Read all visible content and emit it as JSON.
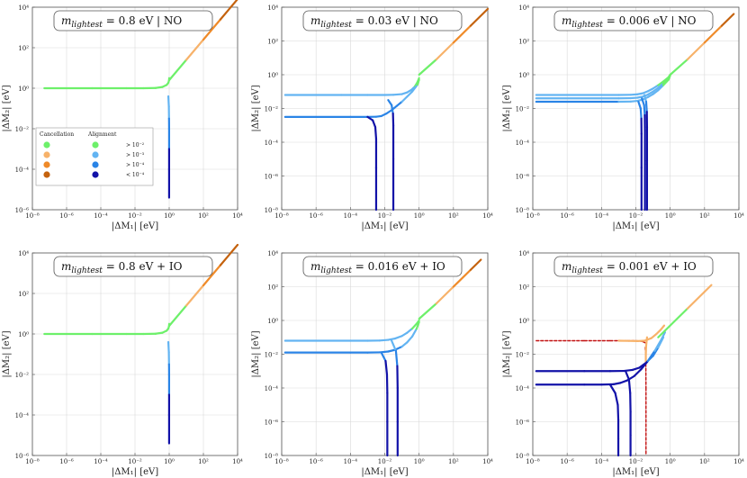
{
  "colors": {
    "green": "#6df06a",
    "peach": "#f7b26a",
    "orange": "#ef8a28",
    "dark_orange": "#c4620e",
    "light_blue": "#63b4f2",
    "mid_blue": "#2a84e6",
    "dark_blue": "#1212a8",
    "red": "#c21010"
  },
  "legend": {
    "title_cancellation": "Cancellation",
    "title_alignment": "Alignment",
    "entries": [
      "> 10⁻²",
      "> 10⁻³",
      "> 10⁻⁴",
      "< 10⁻⁴"
    ]
  },
  "chart_data": [
    {
      "type": "line",
      "title": "m_lightest = 0.8 eV | NO",
      "title_main": "m",
      "title_sub": "lightest",
      "title_rest": " = 0.8 eV  |  NO",
      "xlabel": "|ΔM₁| [eV]",
      "ylabel": "|ΔM₂| [eV]",
      "xlim": [
        -8,
        4
      ],
      "ylim": [
        -6,
        4
      ],
      "xticks": [
        -8,
        -6,
        -4,
        -2,
        0,
        2,
        4
      ],
      "yticks": [
        -6,
        -4,
        -2,
        0,
        2,
        4
      ],
      "series": [
        {
          "name": "plateau",
          "colored": true,
          "x": [
            -7.3,
            -4.5,
            -2.5,
            -1.5,
            -0.8,
            -0.4,
            -0.15,
            -0.05,
            -0.01,
            0.0
          ],
          "y": [
            0,
            0,
            0,
            0,
            0.01,
            0.06,
            0.16,
            0.27,
            0.38,
            0.5
          ]
        },
        {
          "name": "spike",
          "colored": true,
          "x": [
            -0.05,
            -0.02,
            -0.01,
            -0.005,
            -0.005,
            -0.005,
            -0.005
          ],
          "y": [
            -0.4,
            -0.9,
            -1.5,
            -2,
            -3,
            -4,
            -5.4
          ]
        },
        {
          "name": "upper",
          "colored": false,
          "x": [
            0,
            1,
            2,
            3,
            4
          ],
          "y": [
            0.4,
            1.4,
            2.4,
            3.4,
            4.4
          ]
        }
      ]
    },
    {
      "type": "line",
      "title": "m_lightest = 0.03 eV | NO",
      "title_main": "m",
      "title_sub": "lightest",
      "title_rest": " = 0.03 eV  |  NO",
      "xlabel": "|ΔM₁| [eV]",
      "ylabel": "|ΔM₂| [eV]",
      "xlim": [
        -8,
        4
      ],
      "ylim": [
        -8,
        4
      ],
      "xticks": [
        -8,
        -6,
        -4,
        -2,
        0,
        2,
        4
      ],
      "yticks": [
        -8,
        -6,
        -4,
        -2,
        0,
        2,
        4
      ],
      "series": [
        {
          "name": "plateau-1",
          "colored": true,
          "x": [
            -7.8,
            -4.5,
            -3,
            -2,
            -1.5,
            -1,
            -0.7,
            -0.45,
            -0.25,
            -0.1,
            0
          ],
          "y": [
            -1.2,
            -1.2,
            -1.2,
            -1.2,
            -1.19,
            -1.15,
            -1.05,
            -0.9,
            -0.7,
            -0.45,
            -0.2
          ]
        },
        {
          "name": "plateau-2",
          "colored": true,
          "x": [
            -7.8,
            -4,
            -3,
            -2.5,
            -2.2,
            -1.9,
            -1.6,
            -1.3,
            -1,
            -0.7,
            -0.4,
            -0.1,
            0
          ],
          "y": [
            -2.5,
            -2.5,
            -2.5,
            -2.49,
            -2.45,
            -2.3,
            -2.1,
            -1.85,
            -1.6,
            -1.3,
            -1,
            -0.6,
            -0.3
          ]
        },
        {
          "name": "spike-1",
          "colored": true,
          "x": [
            -3,
            -2.7,
            -2.55,
            -2.5,
            -2.5,
            -2.5
          ],
          "y": [
            -2.5,
            -2.7,
            -3.1,
            -3.8,
            -5.5,
            -8
          ]
        },
        {
          "name": "spike-2",
          "colored": true,
          "x": [
            -1.8,
            -1.6,
            -1.52,
            -1.5,
            -1.5,
            -1.5
          ],
          "y": [
            -1.5,
            -1.8,
            -2.3,
            -3,
            -5,
            -8
          ]
        },
        {
          "name": "upper",
          "colored": false,
          "x": [
            0,
            1,
            2,
            3,
            4
          ],
          "y": [
            0,
            0.9,
            1.9,
            2.9,
            3.9
          ]
        }
      ]
    },
    {
      "type": "line",
      "title": "m_lightest = 0.006 eV | NO",
      "title_main": "m",
      "title_sub": "lightest",
      "title_rest": " = 0.006 eV  |  NO",
      "xlabel": "|ΔM₁| [eV]",
      "ylabel": "|ΔM₂| [eV]",
      "xlim": [
        -8,
        4
      ],
      "ylim": [
        -8,
        4
      ],
      "xticks": [
        -8,
        -6,
        -4,
        -2,
        0,
        2,
        4
      ],
      "yticks": [
        -8,
        -6,
        -4,
        -2,
        0,
        2,
        4
      ],
      "series": [
        {
          "name": "plateau-1",
          "colored": true,
          "x": [
            -7.8,
            -4,
            -3,
            -2.3,
            -1.9,
            -1.6,
            -1.3,
            -1,
            -0.7,
            -0.4,
            -0.1,
            0
          ],
          "y": [
            -1.2,
            -1.2,
            -1.2,
            -1.19,
            -1.16,
            -1.1,
            -0.98,
            -0.82,
            -0.62,
            -0.4,
            -0.15,
            0
          ]
        },
        {
          "name": "plateau-2",
          "colored": true,
          "x": [
            -7.8,
            -4,
            -3,
            -2.3,
            -1.9,
            -1.6,
            -1.3,
            -1,
            -0.7,
            -0.4,
            -0.1,
            0
          ],
          "y": [
            -1.4,
            -1.4,
            -1.4,
            -1.39,
            -1.36,
            -1.3,
            -1.18,
            -1.0,
            -0.78,
            -0.52,
            -0.22,
            0
          ]
        },
        {
          "name": "plateau-3",
          "colored": true,
          "x": [
            -7.8,
            -4,
            -3,
            -2.3,
            -1.9,
            -1.6,
            -1.3,
            -1,
            -0.7,
            -0.4,
            -0.1,
            0
          ],
          "y": [
            -1.6,
            -1.6,
            -1.6,
            -1.59,
            -1.55,
            -1.47,
            -1.33,
            -1.15,
            -0.92,
            -0.62,
            -0.3,
            -0.05
          ]
        },
        {
          "name": "spike-1",
          "colored": true,
          "x": [
            -1.85,
            -1.72,
            -1.68,
            -1.67,
            -1.67,
            -1.67
          ],
          "y": [
            -1.6,
            -2.0,
            -2.6,
            -3.5,
            -5.5,
            -8
          ]
        },
        {
          "name": "spike-2",
          "colored": true,
          "x": [
            -1.65,
            -1.52,
            -1.48,
            -1.47,
            -1.47,
            -1.47
          ],
          "y": [
            -1.4,
            -1.8,
            -2.4,
            -3.3,
            -5.3,
            -8
          ]
        },
        {
          "name": "spike-3",
          "colored": true,
          "x": [
            -1.5,
            -1.4,
            -1.36,
            -1.35,
            -1.35,
            -1.35
          ],
          "y": [
            -1.2,
            -1.6,
            -2.2,
            -3.1,
            -5.1,
            -8
          ]
        },
        {
          "name": "upper",
          "colored": false,
          "x": [
            0,
            1,
            2,
            3,
            3.7
          ],
          "y": [
            0,
            0.9,
            1.9,
            2.9,
            3.6
          ]
        }
      ]
    },
    {
      "type": "line",
      "title": "m_lightest = 0.8 eV + IO",
      "title_main": "m",
      "title_sub": "lightest",
      "title_rest": " = 0.8 eV + IO",
      "xlabel": "|ΔM₁| [eV]",
      "ylabel": "|ΔM₂| [eV]",
      "xlim": [
        -8,
        4
      ],
      "ylim": [
        -6,
        4
      ],
      "xticks": [
        -8,
        -6,
        -4,
        -2,
        0,
        2,
        4
      ],
      "yticks": [
        -6,
        -4,
        -2,
        0,
        2,
        4
      ],
      "series": [
        {
          "name": "plateau",
          "colored": true,
          "x": [
            -7.3,
            -4.5,
            -2.5,
            -1.5,
            -0.8,
            -0.4,
            -0.15,
            -0.05,
            -0.01,
            0.0
          ],
          "y": [
            0,
            0,
            0,
            0,
            0.01,
            0.06,
            0.16,
            0.27,
            0.38,
            0.5
          ]
        },
        {
          "name": "spike",
          "colored": true,
          "x": [
            -0.05,
            -0.02,
            -0.01,
            -0.005,
            -0.005,
            -0.005,
            -0.005
          ],
          "y": [
            -0.4,
            -0.9,
            -1.5,
            -2,
            -3,
            -4,
            -5.4
          ]
        },
        {
          "name": "upper",
          "colored": false,
          "x": [
            0,
            1,
            2,
            3,
            4
          ],
          "y": [
            0.4,
            1.4,
            2.4,
            3.4,
            4.4
          ]
        }
      ]
    },
    {
      "type": "line",
      "title": "m_lightest = 0.016 eV + IO",
      "title_main": "m",
      "title_sub": "lightest",
      "title_rest": " = 0.016 eV + IO",
      "xlabel": "|ΔM₁| [eV]",
      "ylabel": "|ΔM₂| [eV]",
      "xlim": [
        -8,
        4
      ],
      "ylim": [
        -8,
        4
      ],
      "xticks": [
        -8,
        -6,
        -4,
        -2,
        0,
        2,
        4
      ],
      "yticks": [
        -8,
        -6,
        -4,
        -2,
        0,
        2,
        4
      ],
      "series": [
        {
          "name": "plateau-1",
          "colored": true,
          "x": [
            -7.8,
            -4,
            -3,
            -2.3,
            -1.8,
            -1.4,
            -1,
            -0.7,
            -0.4,
            -0.15,
            0
          ],
          "y": [
            -1.2,
            -1.2,
            -1.2,
            -1.19,
            -1.15,
            -1.07,
            -0.92,
            -0.73,
            -0.48,
            -0.2,
            0
          ]
        },
        {
          "name": "plateau-2",
          "colored": true,
          "x": [
            -7.8,
            -4,
            -3,
            -2.3,
            -1.8,
            -1.4,
            -1,
            -0.7,
            -0.4,
            -0.15,
            0
          ],
          "y": [
            -1.9,
            -1.9,
            -1.9,
            -1.89,
            -1.84,
            -1.74,
            -1.55,
            -1.3,
            -0.95,
            -0.5,
            -0.1
          ]
        },
        {
          "name": "spike-1",
          "colored": true,
          "x": [
            -2.2,
            -1.95,
            -1.87,
            -1.85,
            -1.85,
            -1.85
          ],
          "y": [
            -1.9,
            -2.4,
            -3.2,
            -4.3,
            -6,
            -8
          ]
        },
        {
          "name": "spike-2",
          "colored": true,
          "x": [
            -1.6,
            -1.35,
            -1.27,
            -1.25,
            -1.25,
            -1.25
          ],
          "y": [
            -1.2,
            -1.8,
            -2.7,
            -4,
            -6,
            -8
          ]
        },
        {
          "name": "upper",
          "colored": false,
          "x": [
            0,
            1,
            2,
            3,
            3.6
          ],
          "y": [
            0.1,
            1.0,
            2.0,
            3.0,
            3.6
          ]
        }
      ]
    },
    {
      "type": "line",
      "title": "m_lightest = 0.001 eV + IO",
      "title_main": "m",
      "title_sub": "lightest",
      "title_rest": " = 0.001 eV + IO",
      "xlabel": "|ΔM₁| [eV]",
      "ylabel": "|ΔM₂| [eV]",
      "xlim": [
        -8,
        4
      ],
      "ylim": [
        -8,
        4
      ],
      "xticks": [
        -8,
        -6,
        -4,
        -2,
        0,
        2,
        4
      ],
      "yticks": [
        -8,
        -6,
        -4,
        -2,
        0,
        2,
        4
      ],
      "series": [
        {
          "name": "red-plateau",
          "colored": false,
          "color": "red",
          "dash": true,
          "x": [
            -7.8,
            -5,
            -3.5,
            -2.5,
            -2,
            -1.6,
            -1.4
          ],
          "y": [
            -1.2,
            -1.2,
            -1.2,
            -1.2,
            -1.2,
            -1.25,
            -1.35
          ]
        },
        {
          "name": "red-spike",
          "colored": false,
          "color": "red",
          "dash": true,
          "x": [
            -1.45,
            -1.42,
            -1.41,
            -1.41
          ],
          "y": [
            -1.6,
            -2.3,
            -4,
            -8
          ]
        },
        {
          "name": "peach-curve",
          "colored": false,
          "color": "peach",
          "x": [
            -3,
            -2.4,
            -1.9,
            -1.5,
            -1.1,
            -0.8,
            -0.55,
            -0.35
          ],
          "y": [
            -1.2,
            -1.21,
            -1.22,
            -1.2,
            -1.05,
            -0.8,
            -0.55,
            -0.3
          ]
        },
        {
          "name": "peach-spike",
          "colored": false,
          "color": "peach",
          "x": [
            -1.35,
            -1.4,
            -1.42,
            -1.42
          ],
          "y": [
            -1.0,
            -1.5,
            -2.0,
            -2.5
          ]
        },
        {
          "name": "plateau-2",
          "colored": true,
          "x": [
            -7.8,
            -5,
            -3.5,
            -2.7,
            -2.2,
            -1.8,
            -1.4,
            -1,
            -0.7,
            -0.4
          ],
          "y": [
            -3,
            -3,
            -3,
            -2.99,
            -2.93,
            -2.8,
            -2.5,
            -2.1,
            -1.6,
            -1.0
          ]
        },
        {
          "name": "plateau-3",
          "colored": true,
          "x": [
            -7.8,
            -5,
            -4,
            -3.3,
            -2.9,
            -2.5,
            -2.1,
            -1.7,
            -1.3,
            -0.9,
            -0.5,
            -0.3
          ],
          "y": [
            -3.8,
            -3.8,
            -3.8,
            -3.78,
            -3.7,
            -3.55,
            -3.3,
            -2.9,
            -2.4,
            -1.8,
            -1.1,
            -0.7
          ]
        },
        {
          "name": "spike-2",
          "colored": true,
          "x": [
            -2.6,
            -2.4,
            -2.33,
            -2.31,
            -2.31,
            -2.31
          ],
          "y": [
            -3,
            -3.5,
            -4.3,
            -5.4,
            -6.8,
            -8
          ]
        },
        {
          "name": "spike-3",
          "colored": true,
          "x": [
            -3.5,
            -3.2,
            -3.05,
            -3.02,
            -3.02,
            -3.02
          ],
          "y": [
            -3.8,
            -4.3,
            -5.0,
            -5.9,
            -7,
            -8
          ]
        },
        {
          "name": "upper",
          "colored": false,
          "x": [
            -0.7,
            -0.3,
            0,
            1,
            2,
            2.4
          ],
          "y": [
            -1.0,
            -0.6,
            -0.3,
            0.7,
            1.7,
            2.1
          ]
        }
      ]
    }
  ]
}
